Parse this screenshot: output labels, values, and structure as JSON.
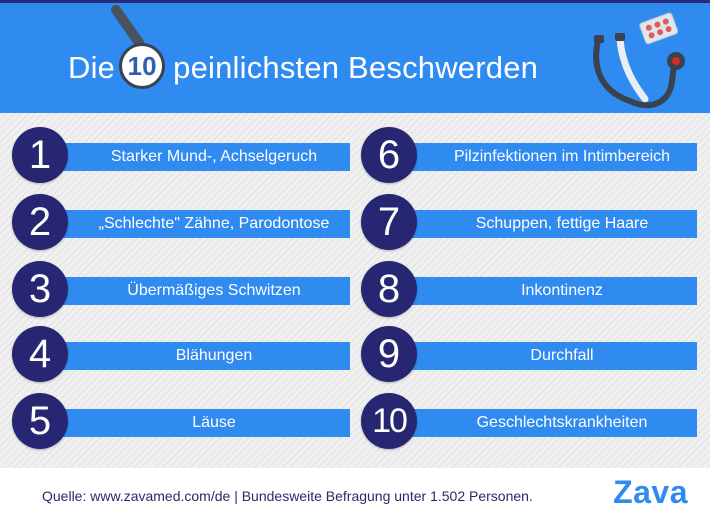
{
  "header": {
    "title_prefix": "Die",
    "title_number": "10",
    "title_suffix": "peinlichsten Beschwerden"
  },
  "items": [
    {
      "number": "1",
      "label": "Starker Mund-, Achselgeruch"
    },
    {
      "number": "2",
      "label": "„Schlechte\" Zähne, Parodontose"
    },
    {
      "number": "3",
      "label": "Übermäßiges Schwitzen"
    },
    {
      "number": "4",
      "label": "Blähungen"
    },
    {
      "number": "5",
      "label": "Läuse"
    },
    {
      "number": "6",
      "label": "Pilzinfektionen im Intimbereich"
    },
    {
      "number": "7",
      "label": "Schuppen, fettige Haare"
    },
    {
      "number": "8",
      "label": "Inkontinenz"
    },
    {
      "number": "9",
      "label": "Durchfall"
    },
    {
      "number": "10",
      "label": "Geschlechtskrankheiten"
    }
  ],
  "footer": {
    "source": "Quelle: www.zavamed.com/de | Bundesweite Befragung unter 1.502 Personen.",
    "logo": "Zava"
  },
  "colors": {
    "header_blue": "#2f8bf0",
    "circle_navy": "#262673",
    "bar_blue": "#2f8bf0"
  }
}
